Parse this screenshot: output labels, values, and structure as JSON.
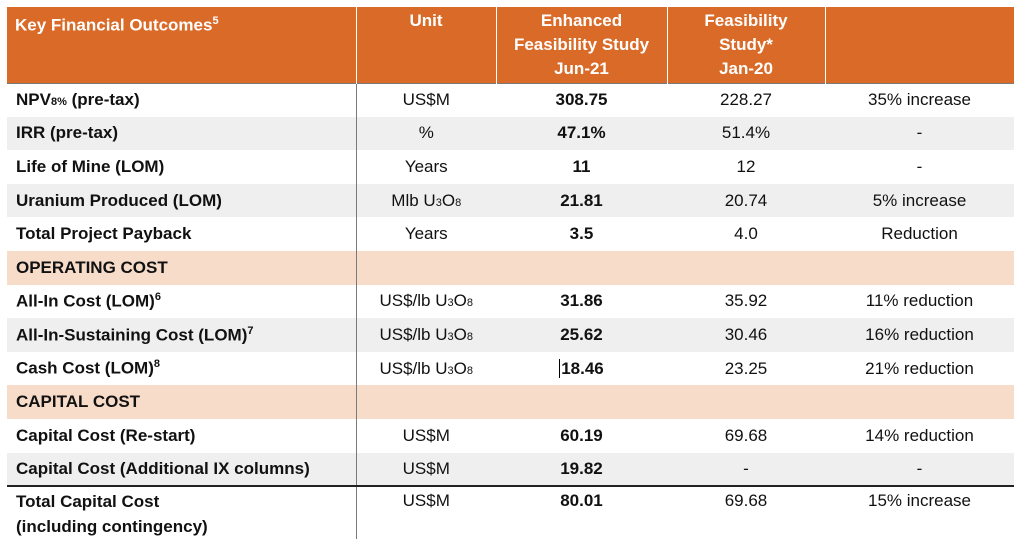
{
  "headers": {
    "col1": "Key Financial Outcomes",
    "col1_sup": "5",
    "col2": "Unit",
    "col3_line1": "Enhanced",
    "col3_line2": "Feasibility Study",
    "col3_line3": "Jun-21",
    "col4_line1": "Feasibility",
    "col4_line2": "Study*",
    "col4_line3": "Jan-20",
    "col5": ""
  },
  "rows": [
    {
      "label": "NPV",
      "label_sub": "8%",
      "label_tail": " (pre-tax)",
      "unit": "US$M",
      "efs": "308.75",
      "fs": "228.27",
      "change": "35% increase"
    },
    {
      "label": "IRR (pre-tax)",
      "unit": "%",
      "efs": "47.1%",
      "fs": "51.4%",
      "change": "-"
    },
    {
      "label": "Life of Mine (LOM)",
      "unit": "Years",
      "efs": "11",
      "fs": "12",
      "change": "-"
    },
    {
      "label": "Uranium Produced (LOM)",
      "unit_pre": "Mlb U",
      "unit_sub1": "3",
      "unit_mid": "O",
      "unit_sub2": "8",
      "efs": "21.81",
      "fs": "20.74",
      "change": "5% increase"
    },
    {
      "label": "Total Project Payback",
      "unit": "Years",
      "efs": "3.5",
      "fs": "4.0",
      "change": "Reduction"
    }
  ],
  "section_operating": "OPERATING COST",
  "operating_rows": [
    {
      "label": "All-In Cost (LOM)",
      "label_sup": "6",
      "unit_pre": "US$/lb U",
      "unit_sub1": "3",
      "unit_mid": "O",
      "unit_sub2": "8",
      "efs": "31.86",
      "fs": "35.92",
      "change": "11% reduction"
    },
    {
      "label": "All-In-Sustaining Cost (LOM)",
      "label_sup": "7",
      "unit_pre": "US$/lb U",
      "unit_sub1": "3",
      "unit_mid": "O",
      "unit_sub2": "8",
      "efs": "25.62",
      "fs": "30.46",
      "change": "16% reduction"
    },
    {
      "label": "Cash Cost (LOM)",
      "label_sup": "8",
      "unit_pre": "US$/lb U",
      "unit_sub1": "3",
      "unit_mid": "O",
      "unit_sub2": "8",
      "efs": "18.46",
      "fs": "23.25",
      "change": "21% reduction"
    }
  ],
  "section_capital": "CAPITAL COST",
  "capital_rows": [
    {
      "label": "Capital Cost (Re-start)",
      "unit": "US$M",
      "efs": "60.19",
      "fs": "69.68",
      "change": "14% reduction"
    },
    {
      "label": "Capital Cost (Additional IX columns)",
      "unit": "US$M",
      "efs": "19.82",
      "fs": "-",
      "change": "-"
    }
  ],
  "total": {
    "label_line1": "Total Capital Cost",
    "label_line2": "(including contingency)",
    "unit": "US$M",
    "efs": "80.01",
    "fs": "69.68",
    "change": "15% increase"
  },
  "colors": {
    "header_bg": "#d96a27",
    "section_bg": "#f7dcca",
    "alt_row_bg": "#efefef"
  }
}
